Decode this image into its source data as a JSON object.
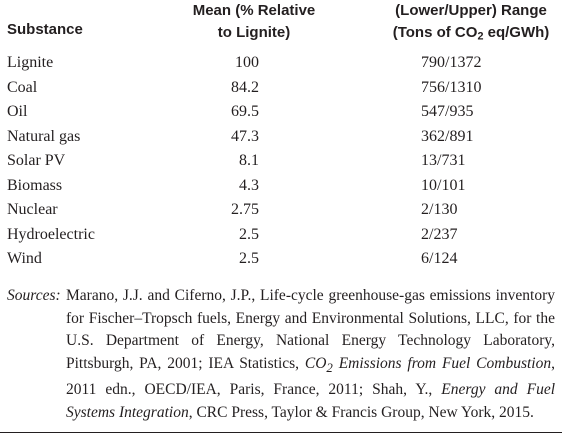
{
  "headers": {
    "substance": "Substance",
    "mean_line1": "Mean (% Relative",
    "mean_line2": "to Lignite)",
    "range_line1": "(Lower/Upper) Range",
    "range_line2_a": "(Tons of CO",
    "range_line2_sub": "2",
    "range_line2_b": " eq/GWh)"
  },
  "rows": [
    {
      "substance": "Lignite",
      "mean": "100",
      "range": "790/1372"
    },
    {
      "substance": "Coal",
      "mean": "84.2",
      "range": "756/1310"
    },
    {
      "substance": "Oil",
      "mean": "69.5",
      "range": "547/935"
    },
    {
      "substance": "Natural gas",
      "mean": "47.3",
      "range": "362/891"
    },
    {
      "substance": "Solar PV",
      "mean": "8.1",
      "range": "13/731"
    },
    {
      "substance": "Biomass",
      "mean": "4.3",
      "range": "10/101"
    },
    {
      "substance": "Nuclear",
      "mean": "2.75",
      "range": "2/130"
    },
    {
      "substance": "Hydroelectric",
      "mean": "2.5",
      "range": "2/237"
    },
    {
      "substance": "Wind",
      "mean": "2.5",
      "range": "6/124"
    }
  ],
  "sources": {
    "label": "Sources:",
    "part1": "Marano, J.J. and Ciferno, J.P., Life-cycle greenhouse-gas emissions inventory for Fischer–Tropsch fuels, Energy and Environmental Solutions, LLC, for the U.S. Department of Energy, National Energy Technology Laboratory, Pittsburgh, PA, 2001; IEA Statistics, ",
    "title1_a": "CO",
    "title1_sub": "2",
    "title1_b": " Emissions from Fuel Combustion",
    "part2": ", 2011 edn., OECD/IEA, Paris, France, 2011; Shah, Y., ",
    "title2": "Energy and Fuel Systems Integration",
    "part3": ", CRC Press, Taylor & Francis Group, New York, 2015."
  }
}
